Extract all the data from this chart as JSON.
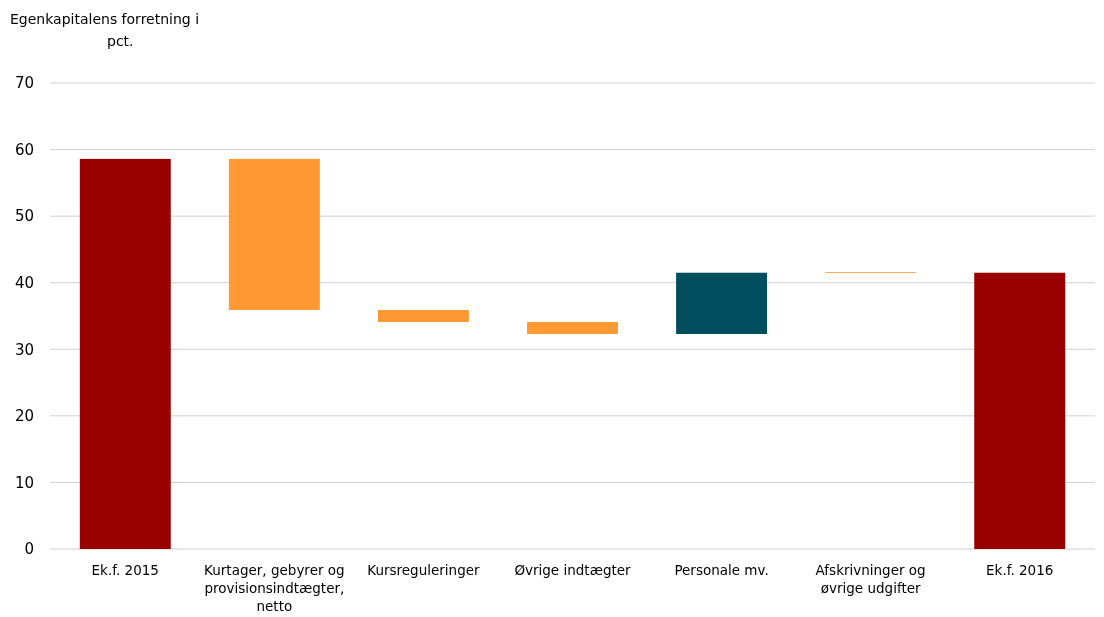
{
  "chart_data": {
    "type": "bar",
    "ylabel": "Egenkapitalens forretning i pct.",
    "categories": [
      "Ek.f. 2015",
      "Kurtager, gebyrer og provisionsindtægter, netto",
      "Kursreguleringer",
      "Øvrige indtægter",
      "Personale mv.",
      "Afskrivninger og øvrige udgifter",
      "Ek.f. 2016"
    ],
    "values": [
      58.6,
      22.7,
      1.8,
      1.8,
      9.2,
      0.1,
      41.5
    ],
    "base": [
      0,
      35.9,
      34.1,
      32.3,
      32.3,
      41.5,
      0
    ],
    "colors": [
      "#990000",
      "#ff9933",
      "#ff9933",
      "#ff9933",
      "#004d5e",
      "#ff9933",
      "#990000"
    ],
    "ylim": [
      0,
      70
    ],
    "yticks": [
      0,
      10,
      20,
      30,
      40,
      50,
      60,
      70
    ],
    "grid": "y"
  }
}
